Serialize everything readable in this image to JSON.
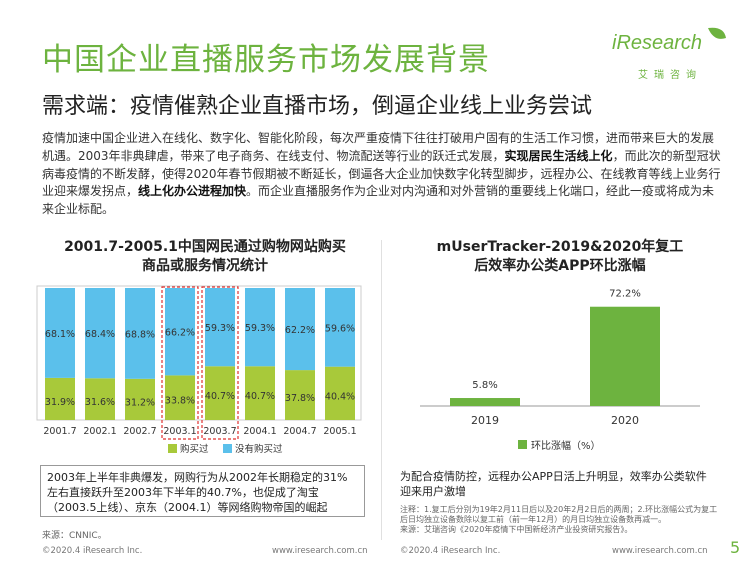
{
  "header": {
    "title": "中国企业直播服务市场发展背景",
    "subtitle": "需求端：疫情催熟企业直播市场，倒逼企业线上业务尝试",
    "logo_en": "iResearch",
    "logo_cn": "艾瑞咨询"
  },
  "paragraph": {
    "p1": "疫情加速中国企业进入在线化、数字化、智能化阶段，每次严重疫情下往往打破用户固有的生活工作习惯，进而带来巨大的发展机遇。2003年非典肆虐，带来了电子商务、在线支付、物流配送等行业的跃迁式发展，",
    "b1": "实现居民生活线上化",
    "p2": "，而此次的新型冠状病毒疫情的不断发酵，使得2020年春节假期被不断延长，倒逼各大企业加快数字化转型脚步，远程办公、在线教育等线上业务行业迎来爆发拐点，",
    "b2": "线上化办公进程加快",
    "p3": "。而企业直播服务作为企业对内沟通和对外营销的重要线上化端口，经此一疫或将成为未来企业标配。"
  },
  "chart_data": [
    {
      "type": "bar",
      "stacked": true,
      "title": "2001.7-2005.1中国网民通过购物网站购买商品或服务情况统计",
      "categories": [
        "2001.7",
        "2002.1",
        "2002.7",
        "2003.1",
        "2003.7",
        "2004.1",
        "2004.7",
        "2005.1"
      ],
      "series": [
        {
          "name": "购买过",
          "color": "#a8c93a",
          "values": [
            31.9,
            31.6,
            31.2,
            33.8,
            40.7,
            40.7,
            37.8,
            40.4
          ],
          "labels": [
            "31.9%",
            "31.6%",
            "31.2%",
            "33.8%",
            "40.7%",
            "40.7%",
            "37.8%",
            "40.4%"
          ]
        },
        {
          "name": "没有购买过",
          "color": "#5bc0eb",
          "values": [
            68.1,
            68.4,
            68.8,
            66.2,
            59.3,
            59.3,
            62.2,
            59.6
          ],
          "labels": [
            "68.1%",
            "68.4%",
            "68.8%",
            "66.2%",
            "59.3%",
            "59.3%",
            "62.2%",
            "59.6%"
          ]
        }
      ],
      "highlighted": [
        "2003.1",
        "2003.7"
      ],
      "ylim": [
        0,
        100
      ]
    },
    {
      "type": "bar",
      "title": "mUserTracker-2019&2020年复工后效率办公类APP环比涨幅",
      "categories": [
        "2019",
        "2020"
      ],
      "series": [
        {
          "name": "环比涨幅（%）",
          "color": "#6db33f",
          "values": [
            5.8,
            72.2
          ],
          "labels": [
            "5.8%",
            "72.2%"
          ]
        }
      ],
      "ylim": [
        0,
        80
      ]
    }
  ],
  "notes": {
    "left_box": "2003年上半年非典爆发，网购行为从2002年长期稳定的31%左右直接跃升至2003年下半年的40.7%，也促成了淘宝（2003.5上线）、京东（2004.1）等网络购物帝国的崛起",
    "left_source": "来源：CNNIC。",
    "right_note": "为配合疫情防控，远程办公APP日活上升明显，效率办公类软件迎来用户激增",
    "right_fine": "注释：1.复工后分别为19年2月11日后以及20年2月2日后的两周；2.环比涨幅公式为复工后日均独立设备数除以复工前（前一年12月）的月日均独立设备数再减一。\n来源：艾瑞咨询《2020年疫情下中国新经济产业投资研究报告》。"
  },
  "footer": {
    "left_copy": "©2020.4 iResearch Inc.",
    "left_url": "www.iresearch.com.cn",
    "right_copy": "©2020.4 iResearch Inc.",
    "right_url": "www.iresearch.com.cn",
    "page": "5"
  }
}
